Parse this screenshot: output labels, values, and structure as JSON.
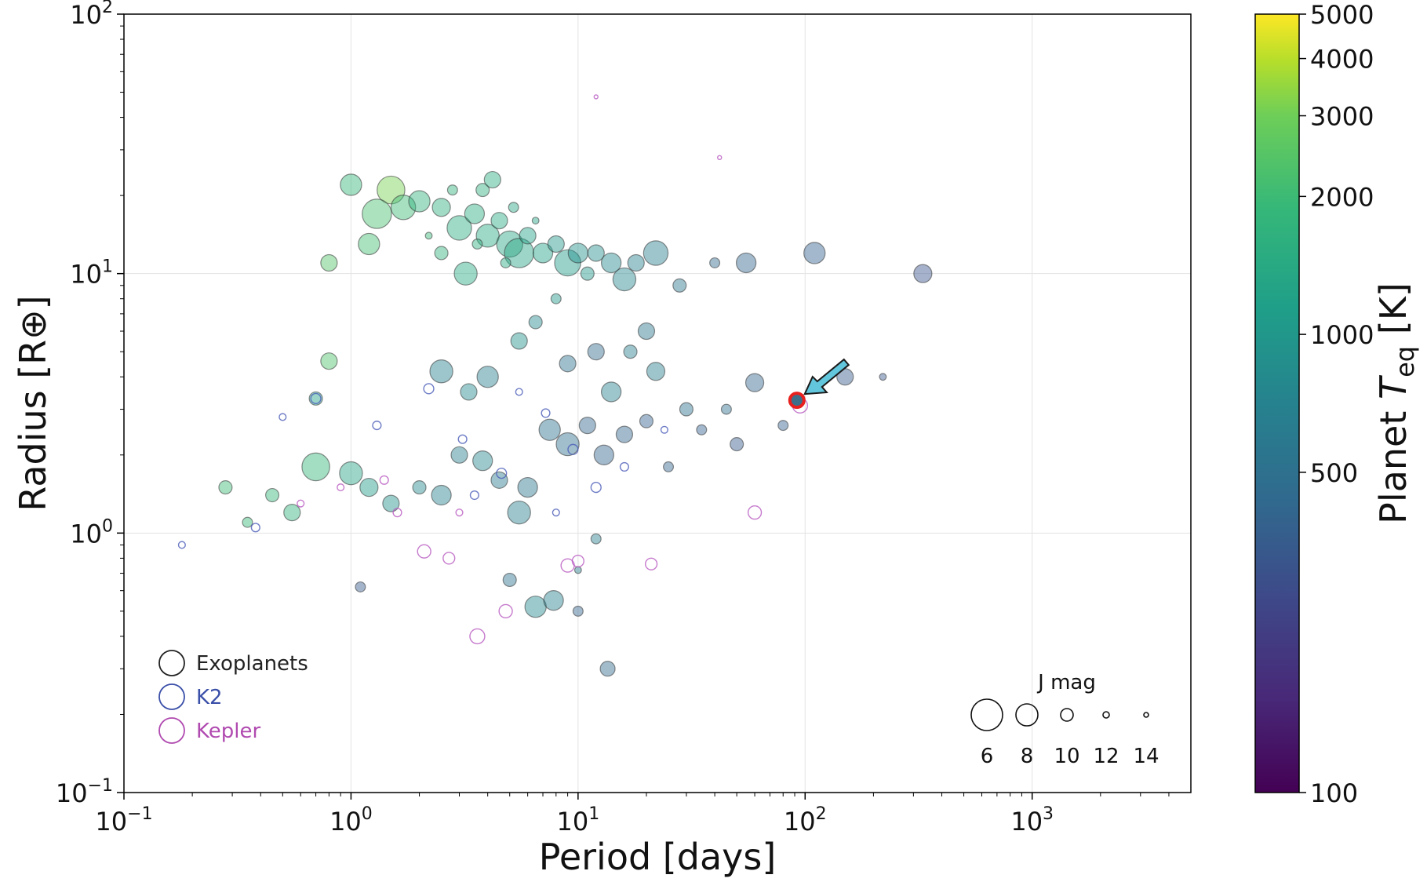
{
  "chart_data": {
    "type": "scatter",
    "title": "",
    "xlabel": "Period [days]",
    "ylabel": "Radius [R⊕]",
    "xscale": "log",
    "yscale": "log",
    "xlim": [
      0.1,
      5000
    ],
    "ylim": [
      0.1,
      100
    ],
    "grid": true,
    "x_ticks": [
      {
        "value": 0.1,
        "base": "10",
        "exp": "−1"
      },
      {
        "value": 1,
        "base": "10",
        "exp": "0"
      },
      {
        "value": 10,
        "base": "10",
        "exp": "1"
      },
      {
        "value": 100,
        "base": "10",
        "exp": "2"
      },
      {
        "value": 1000,
        "base": "10",
        "exp": "3"
      }
    ],
    "y_ticks": [
      {
        "value": 0.1,
        "base": "10",
        "exp": "−1"
      },
      {
        "value": 1,
        "base": "10",
        "exp": "0"
      },
      {
        "value": 10,
        "base": "10",
        "exp": "1"
      },
      {
        "value": 100,
        "base": "10",
        "exp": "2"
      }
    ],
    "colorbar": {
      "label_prefix": "Planet ",
      "label_var": "T",
      "label_sub": "eq",
      "label_suffix": " [K]",
      "range": [
        100,
        5000
      ],
      "scale": "log",
      "colormap": "viridis",
      "ticks": [
        "100",
        "500",
        "1000",
        "2000",
        "3000",
        "4000",
        "5000"
      ]
    },
    "legend": {
      "position": "bottom-left",
      "entries": [
        {
          "label": "Exoplanets",
          "color": "#222222"
        },
        {
          "label": "K2",
          "color": "#3a4fa8"
        },
        {
          "label": "Kepler",
          "color": "#b04ab0"
        }
      ]
    },
    "size_legend": {
      "position": "bottom-right",
      "title": "J mag",
      "entries": [
        {
          "label": "6",
          "jmag": 6
        },
        {
          "label": "8",
          "jmag": 8
        },
        {
          "label": "10",
          "jmag": 10
        },
        {
          "label": "12",
          "jmag": 12
        },
        {
          "label": "14",
          "jmag": 14
        }
      ]
    },
    "highlight": {
      "period": 92,
      "radius": 3.25,
      "marker": "red circle with cyan arrow"
    },
    "series": [
      {
        "name": "Exoplanets",
        "style": "filled",
        "points": [
          [
            1.0,
            22,
            1800,
            8.5
          ],
          [
            1.5,
            21,
            3100,
            6.5
          ],
          [
            1.3,
            17,
            2200,
            6.0
          ],
          [
            1.7,
            18,
            2000,
            7.5
          ],
          [
            2.0,
            19,
            1700,
            8.5
          ],
          [
            2.5,
            18,
            1600,
            9.5
          ],
          [
            3.0,
            15,
            1500,
            7.5
          ],
          [
            3.5,
            17,
            1500,
            9
          ],
          [
            4.0,
            14,
            1400,
            8
          ],
          [
            4.5,
            16,
            1400,
            10
          ],
          [
            5.0,
            13,
            1350,
            7
          ],
          [
            5.5,
            12,
            1300,
            6
          ],
          [
            6.0,
            14,
            1200,
            10
          ],
          [
            7.0,
            12,
            1200,
            9
          ],
          [
            8.0,
            13,
            1000,
            10
          ],
          [
            9.0,
            11,
            1100,
            7
          ],
          [
            10.0,
            12,
            900,
            9
          ],
          [
            11.0,
            10,
            1000,
            11
          ],
          [
            12.0,
            12,
            850,
            10
          ],
          [
            14.0,
            11,
            800,
            9
          ],
          [
            16.0,
            9.5,
            750,
            8
          ],
          [
            18.0,
            11,
            700,
            10
          ],
          [
            22.0,
            12,
            650,
            7.5
          ],
          [
            28.0,
            9,
            550,
            11
          ],
          [
            40.0,
            11,
            450,
            12
          ],
          [
            55.0,
            11,
            420,
            9
          ],
          [
            110.0,
            12,
            380,
            8.5
          ],
          [
            330.0,
            10,
            320,
            9.5
          ],
          [
            2.5,
            12,
            1700,
            11
          ],
          [
            3.2,
            10,
            1400,
            8
          ],
          [
            1.2,
            13,
            2100,
            8.5
          ],
          [
            0.8,
            11,
            2400,
            10
          ],
          [
            3.8,
            21,
            1600,
            11
          ],
          [
            4.2,
            23,
            1500,
            10
          ],
          [
            2.8,
            21,
            1700,
            12
          ],
          [
            6.5,
            16,
            1300,
            13
          ],
          [
            2.2,
            14,
            1900,
            13
          ],
          [
            3.6,
            13,
            1600,
            12
          ],
          [
            4.8,
            11,
            1400,
            12
          ],
          [
            5.2,
            18,
            1350,
            12
          ],
          [
            0.8,
            4.6,
            2300,
            10
          ],
          [
            0.7,
            3.3,
            1200,
            11
          ],
          [
            2.5,
            4.2,
            700,
            8
          ],
          [
            3.3,
            3.5,
            800,
            10
          ],
          [
            4.0,
            4.0,
            650,
            8.5
          ],
          [
            5.5,
            5.5,
            900,
            10
          ],
          [
            6.5,
            6.5,
            800,
            11
          ],
          [
            8.0,
            8.0,
            1000,
            12
          ],
          [
            9.0,
            4.5,
            500,
            10
          ],
          [
            12.0,
            5.0,
            450,
            10
          ],
          [
            14.0,
            3.5,
            700,
            9
          ],
          [
            17.0,
            5.0,
            650,
            11
          ],
          [
            20.0,
            6.0,
            550,
            10
          ],
          [
            22.0,
            4.2,
            650,
            9.5
          ],
          [
            30.0,
            3.0,
            500,
            11
          ],
          [
            45.0,
            3.0,
            480,
            12
          ],
          [
            60.0,
            3.8,
            400,
            9.5
          ],
          [
            80.0,
            2.6,
            380,
            12
          ],
          [
            150.0,
            4.0,
            350,
            10
          ],
          [
            220.0,
            4.0,
            330,
            13
          ],
          [
            0.7,
            1.8,
            1800,
            6.5
          ],
          [
            1.0,
            1.7,
            1300,
            8
          ],
          [
            1.2,
            1.5,
            1100,
            9.5
          ],
          [
            1.5,
            1.3,
            900,
            10
          ],
          [
            2.0,
            1.5,
            800,
            11
          ],
          [
            2.5,
            1.4,
            700,
            9
          ],
          [
            3.0,
            2.0,
            650,
            10
          ],
          [
            3.8,
            1.9,
            750,
            9
          ],
          [
            4.5,
            1.6,
            600,
            10
          ],
          [
            5.5,
            1.2,
            650,
            8
          ],
          [
            6.0,
            1.5,
            550,
            9
          ],
          [
            7.5,
            2.5,
            500,
            8.5
          ],
          [
            9.0,
            2.2,
            480,
            8
          ],
          [
            11.0,
            2.6,
            420,
            10
          ],
          [
            13.0,
            2.0,
            400,
            9
          ],
          [
            16.0,
            2.4,
            420,
            10
          ],
          [
            20.0,
            2.7,
            380,
            11
          ],
          [
            25.0,
            1.8,
            400,
            12
          ],
          [
            35.0,
            2.5,
            380,
            12
          ],
          [
            50.0,
            2.2,
            350,
            11
          ],
          [
            0.28,
            1.5,
            2000,
            11
          ],
          [
            0.35,
            1.1,
            1900,
            12
          ],
          [
            0.45,
            1.4,
            1800,
            11
          ],
          [
            0.55,
            1.2,
            1700,
            10
          ],
          [
            6.5,
            0.52,
            800,
            8.5
          ],
          [
            7.8,
            0.55,
            700,
            9
          ],
          [
            10.0,
            0.5,
            400,
            12
          ],
          [
            13.5,
            0.3,
            450,
            10.5
          ],
          [
            12.0,
            0.95,
            650,
            12
          ],
          [
            10.0,
            0.72,
            700,
            13
          ],
          [
            5.0,
            0.66,
            500,
            11
          ],
          [
            1.1,
            0.62,
            350,
            12
          ]
        ]
      },
      {
        "name": "K2",
        "style": "open",
        "points": [
          [
            0.18,
            0.9,
            350,
            13
          ],
          [
            0.38,
            1.05,
            500,
            12.5
          ],
          [
            0.5,
            2.8,
            500,
            13
          ],
          [
            0.7,
            3.3,
            600,
            12
          ],
          [
            1.3,
            2.6,
            650,
            12.5
          ],
          [
            2.2,
            3.6,
            550,
            12
          ],
          [
            3.1,
            2.3,
            450,
            12.5
          ],
          [
            4.6,
            1.7,
            480,
            12
          ],
          [
            7.2,
            2.9,
            420,
            12.5
          ],
          [
            9.5,
            2.1,
            450,
            12
          ],
          [
            16.0,
            1.8,
            420,
            12.5
          ],
          [
            24.0,
            2.5,
            400,
            13
          ],
          [
            12.0,
            1.5,
            500,
            12
          ],
          [
            8.0,
            1.2,
            480,
            13
          ],
          [
            3.5,
            1.4,
            600,
            12.5
          ],
          [
            5.5,
            3.5,
            550,
            13
          ]
        ]
      },
      {
        "name": "Kepler",
        "style": "open",
        "points": [
          [
            3.6,
            0.4,
            900,
            10.5
          ],
          [
            4.8,
            0.5,
            800,
            11
          ],
          [
            9.0,
            0.75,
            600,
            11
          ],
          [
            10.0,
            0.78,
            550,
            11.5
          ],
          [
            21.0,
            0.76,
            450,
            11.5
          ],
          [
            2.1,
            0.85,
            800,
            11
          ],
          [
            2.7,
            0.8,
            700,
            11.5
          ],
          [
            60.0,
            1.2,
            350,
            11
          ],
          [
            95.0,
            3.1,
            350,
            10.5
          ],
          [
            12.0,
            48,
            900,
            14
          ],
          [
            42.0,
            28,
            800,
            14
          ],
          [
            1.6,
            1.2,
            1000,
            12.5
          ],
          [
            0.9,
            1.5,
            1200,
            13
          ],
          [
            0.6,
            1.3,
            1100,
            13
          ],
          [
            1.4,
            1.6,
            900,
            12.5
          ],
          [
            3.0,
            1.2,
            800,
            13
          ]
        ]
      }
    ]
  }
}
